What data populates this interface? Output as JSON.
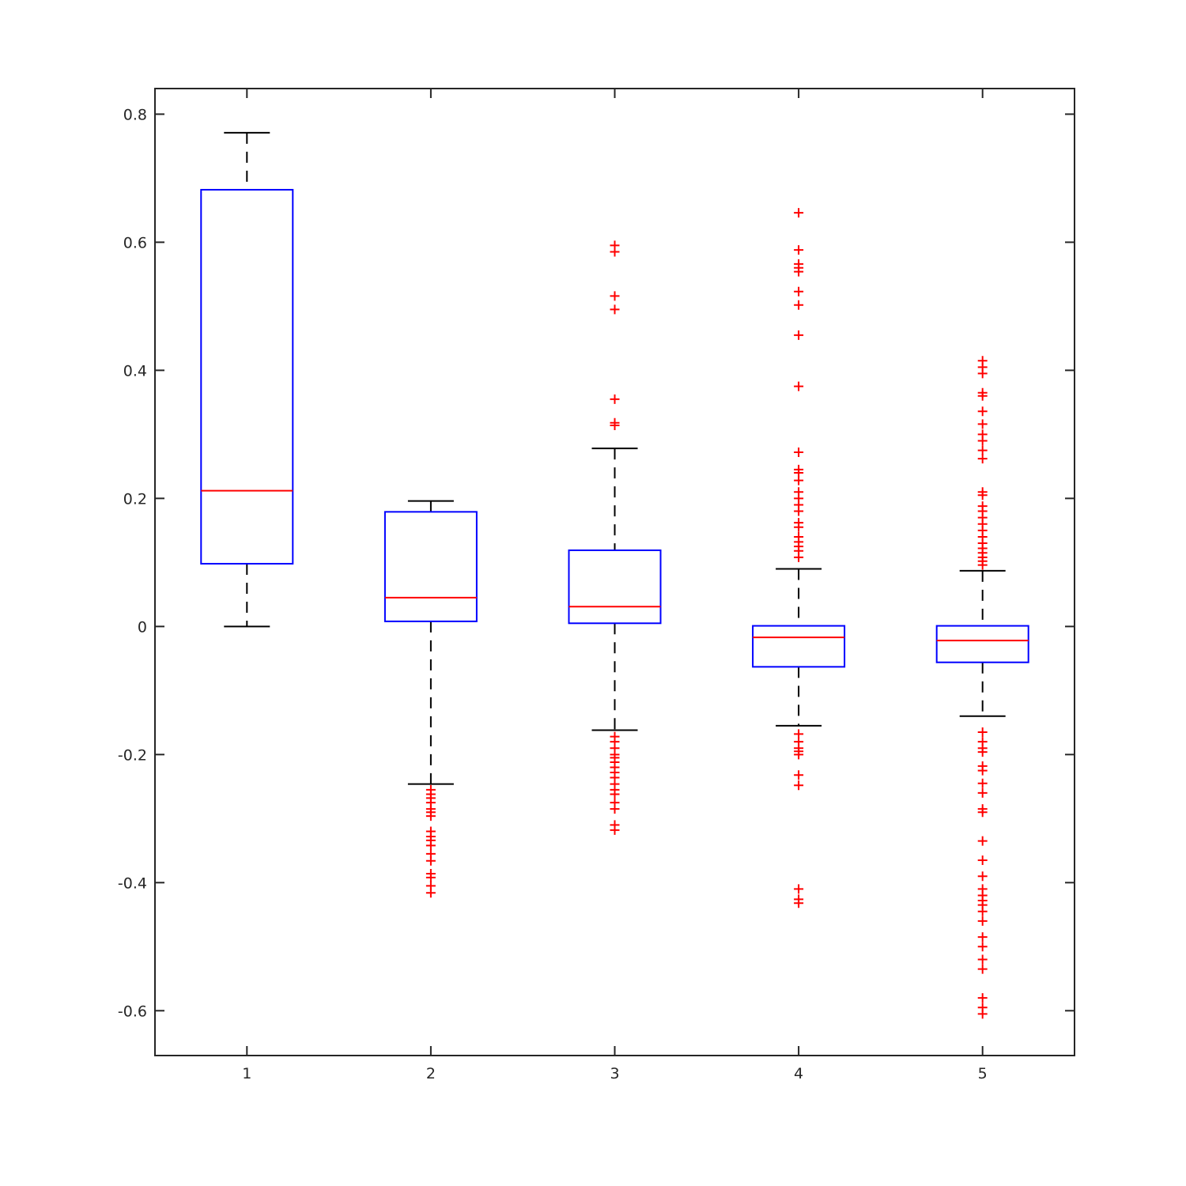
{
  "chart_data": {
    "type": "box",
    "title": "",
    "xlabel": "",
    "ylabel": "",
    "categories": [
      "1",
      "2",
      "3",
      "4",
      "5"
    ],
    "xlim": [
      0.5,
      5.5
    ],
    "ylim": [
      -0.67,
      0.84
    ],
    "yticks": [
      -0.6,
      -0.4,
      -0.2,
      0,
      0.2,
      0.4,
      0.6,
      0.8
    ],
    "ytick_labels": [
      "-0.6",
      "-0.4",
      "-0.2",
      "0",
      "0.2",
      "0.4",
      "0.6",
      "0.8"
    ],
    "grid": false,
    "colors": {
      "box": "#0000ff",
      "median": "#ff0000",
      "whisker": "#000000",
      "outlier": "#ff0000",
      "axis": "#262626"
    },
    "boxes": [
      {
        "category": "1",
        "whisker_low": 0.0,
        "q1": 0.098,
        "median": 0.212,
        "q3": 0.682,
        "whisker_high": 0.771,
        "outliers": []
      },
      {
        "category": "2",
        "whisker_low": -0.246,
        "q1": 0.008,
        "median": 0.045,
        "q3": 0.179,
        "whisker_high": 0.196,
        "outliers": [
          -0.255,
          -0.262,
          -0.268,
          -0.275,
          -0.285,
          -0.29,
          -0.296,
          -0.32,
          -0.328,
          -0.334,
          -0.342,
          -0.355,
          -0.366,
          -0.386,
          -0.392,
          -0.405,
          -0.416
        ]
      },
      {
        "category": "3",
        "whisker_low": -0.162,
        "q1": 0.005,
        "median": 0.031,
        "q3": 0.119,
        "whisker_high": 0.278,
        "outliers": [
          0.595,
          0.585,
          0.516,
          0.495,
          0.355,
          0.318,
          0.314,
          -0.172,
          -0.18,
          -0.19,
          -0.2,
          -0.205,
          -0.212,
          -0.22,
          -0.228,
          -0.236,
          -0.246,
          -0.255,
          -0.262,
          -0.275,
          -0.285,
          -0.31,
          -0.318
        ]
      },
      {
        "category": "4",
        "whisker_low": -0.155,
        "q1": -0.063,
        "median": -0.017,
        "q3": 0.001,
        "whisker_high": 0.09,
        "outliers": [
          0.646,
          0.588,
          0.566,
          0.56,
          0.554,
          0.523,
          0.502,
          0.455,
          0.375,
          0.272,
          0.245,
          0.24,
          0.228,
          0.21,
          0.2,
          0.19,
          0.18,
          0.162,
          0.155,
          0.14,
          0.132,
          0.125,
          0.118,
          0.108,
          -0.168,
          -0.18,
          -0.19,
          -0.195,
          -0.2,
          -0.232,
          -0.248,
          -0.41,
          -0.426,
          -0.432
        ]
      },
      {
        "category": "5",
        "whisker_low": -0.14,
        "q1": -0.056,
        "median": -0.022,
        "q3": 0.001,
        "whisker_high": 0.087,
        "outliers": [
          0.415,
          0.405,
          0.395,
          0.365,
          0.36,
          0.336,
          0.316,
          0.3,
          0.29,
          0.275,
          0.262,
          0.21,
          0.205,
          0.188,
          0.18,
          0.17,
          0.16,
          0.15,
          0.14,
          0.13,
          0.122,
          0.115,
          0.108,
          0.102,
          0.096,
          -0.165,
          -0.18,
          -0.19,
          -0.196,
          -0.218,
          -0.225,
          -0.245,
          -0.26,
          -0.285,
          -0.29,
          -0.335,
          -0.365,
          -0.39,
          -0.41,
          -0.42,
          -0.428,
          -0.435,
          -0.445,
          -0.46,
          -0.485,
          -0.5,
          -0.52,
          -0.535,
          -0.58,
          -0.595,
          -0.605
        ]
      }
    ]
  }
}
